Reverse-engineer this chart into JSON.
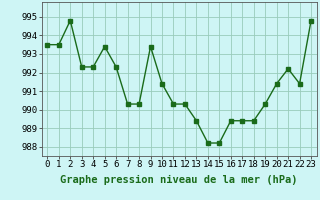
{
  "x": [
    0,
    1,
    2,
    3,
    4,
    5,
    6,
    7,
    8,
    9,
    10,
    11,
    12,
    13,
    14,
    15,
    16,
    17,
    18,
    19,
    20,
    21,
    22,
    23
  ],
  "y": [
    993.5,
    993.5,
    994.8,
    992.3,
    992.3,
    993.4,
    992.3,
    990.3,
    990.3,
    993.4,
    991.4,
    990.3,
    990.3,
    989.4,
    988.2,
    988.2,
    989.4,
    989.4,
    989.4,
    990.3,
    991.4,
    992.2,
    991.4,
    994.8
  ],
  "line_color": "#1a6b1a",
  "marker_color": "#1a6b1a",
  "bg_color": "#cef5f5",
  "grid_color": "#99ccbb",
  "xlabel": "Graphe pression niveau de la mer (hPa)",
  "ylim_min": 987.5,
  "ylim_max": 995.8,
  "yticks": [
    988,
    989,
    990,
    991,
    992,
    993,
    994,
    995
  ],
  "xticks": [
    0,
    1,
    2,
    3,
    4,
    5,
    6,
    7,
    8,
    9,
    10,
    11,
    12,
    13,
    14,
    15,
    16,
    17,
    18,
    19,
    20,
    21,
    22,
    23
  ],
  "xlabel_fontsize": 7.5,
  "tick_fontsize": 6.5,
  "marker_size": 2.5,
  "line_width": 1.0
}
